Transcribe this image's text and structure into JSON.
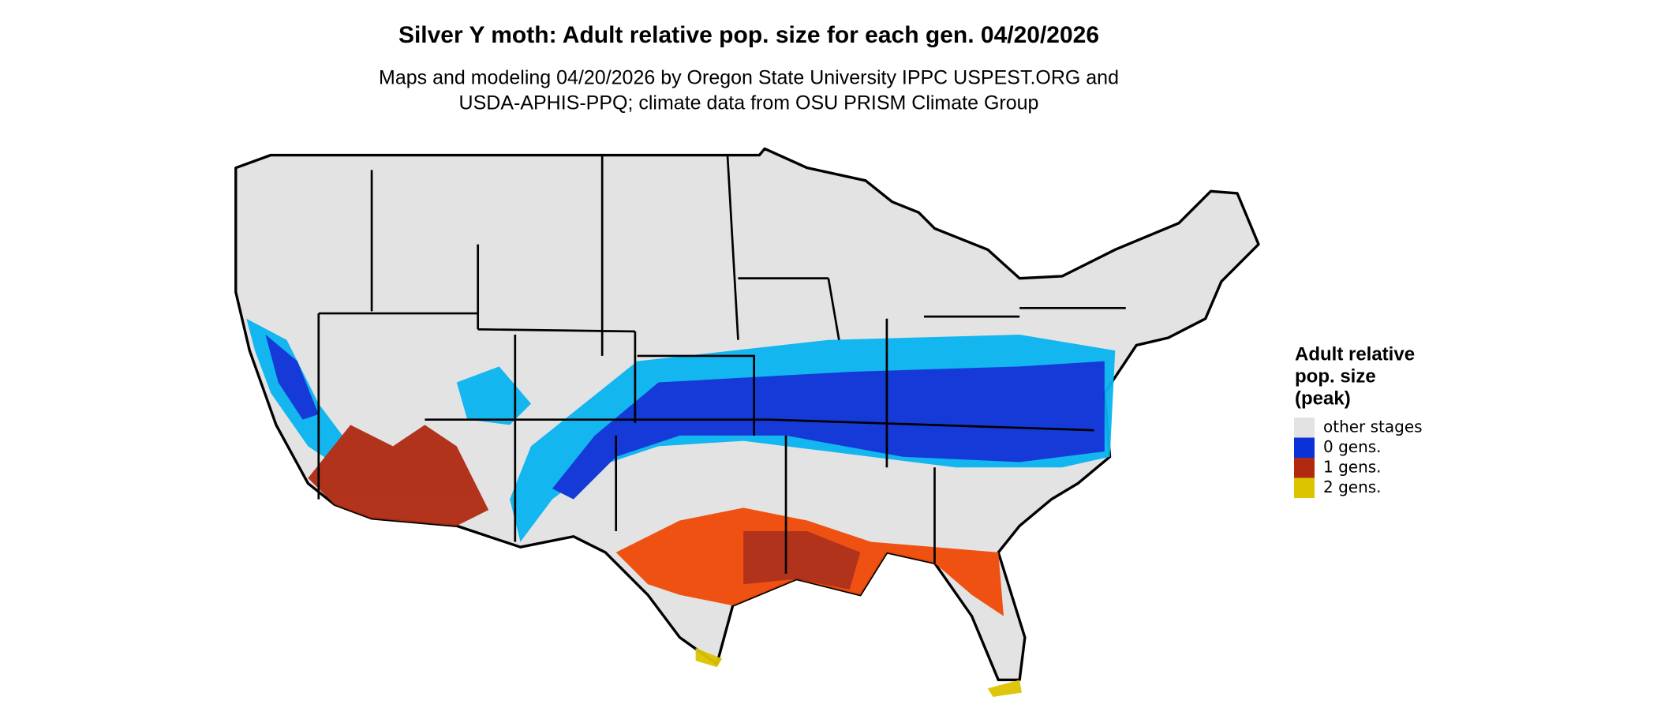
{
  "title": "Silver Y moth: Adult relative pop. size for each gen. 04/20/2026",
  "subtitle": [
    "Maps and modeling 04/20/2026 by Oregon State University IPPC USPEST.ORG and",
    "USDA-APHIS-PPQ; climate data from OSU PRISM Climate Group"
  ],
  "legend": {
    "title": [
      "Adult relative",
      "pop. size",
      "(peak)"
    ],
    "items": [
      {
        "label": "other stages",
        "color": "#e3e3e3"
      },
      {
        "label": "0 gens.",
        "color": "#0a32d8"
      },
      {
        "label": "1 gens.",
        "color": "#b02a12"
      },
      {
        "label": "2 gens.",
        "color": "#dcc400"
      }
    ]
  }
}
